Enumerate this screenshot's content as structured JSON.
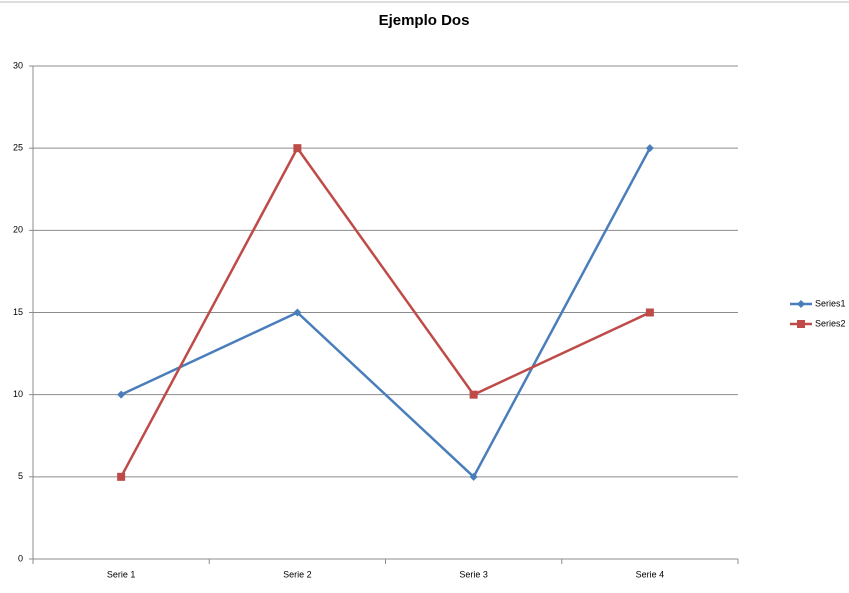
{
  "chart_data": {
    "type": "line",
    "title": "Ejemplo Dos",
    "categories": [
      "Serie 1",
      "Serie 2",
      "Serie 3",
      "Serie 4"
    ],
    "series": [
      {
        "name": "Series1",
        "color": "#4a7ebb",
        "marker": "diamond",
        "values": [
          10,
          15,
          5,
          25
        ]
      },
      {
        "name": "Series2",
        "color": "#be4b48",
        "marker": "square",
        "values": [
          5,
          25,
          10,
          15
        ]
      }
    ],
    "ylim": [
      0,
      30
    ],
    "yticks": [
      0,
      5,
      10,
      15,
      20,
      25,
      30
    ],
    "grid": true,
    "legend": "right"
  }
}
